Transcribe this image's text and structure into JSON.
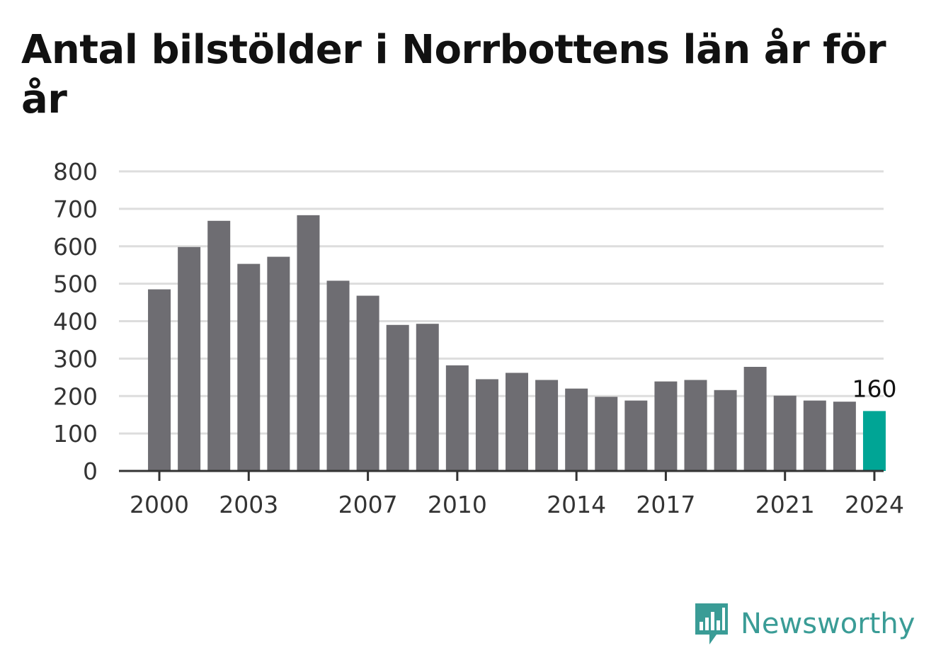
{
  "title": "Antal bilstölder i Norrbottens län år för år",
  "logo": {
    "text": "Newsworthy",
    "icon": "bar-chart-speech-bubble-icon"
  },
  "colors": {
    "bar": "#6e6d72",
    "highlight": "#00a595",
    "grid": "#dddddd",
    "axis": "#333333",
    "brand": "#3a9c96"
  },
  "chart_data": {
    "type": "bar",
    "categories": [
      2000,
      2001,
      2002,
      2003,
      2004,
      2005,
      2006,
      2007,
      2008,
      2009,
      2010,
      2011,
      2012,
      2013,
      2014,
      2015,
      2016,
      2017,
      2018,
      2019,
      2020,
      2021,
      2022,
      2023,
      2024
    ],
    "values": [
      485,
      598,
      668,
      553,
      572,
      683,
      508,
      468,
      390,
      393,
      282,
      245,
      262,
      243,
      220,
      198,
      188,
      239,
      243,
      216,
      278,
      201,
      188,
      185,
      160
    ],
    "xtick_labels": [
      "2000",
      "2003",
      "2007",
      "2010",
      "2014",
      "2017",
      "2021",
      "2024"
    ],
    "yticks": [
      0,
      100,
      200,
      300,
      400,
      500,
      600,
      700,
      800
    ],
    "ylim": [
      0,
      800
    ],
    "highlight": {
      "category": 2024,
      "label": "160"
    },
    "grid": true,
    "xlabel": "",
    "ylabel": ""
  }
}
